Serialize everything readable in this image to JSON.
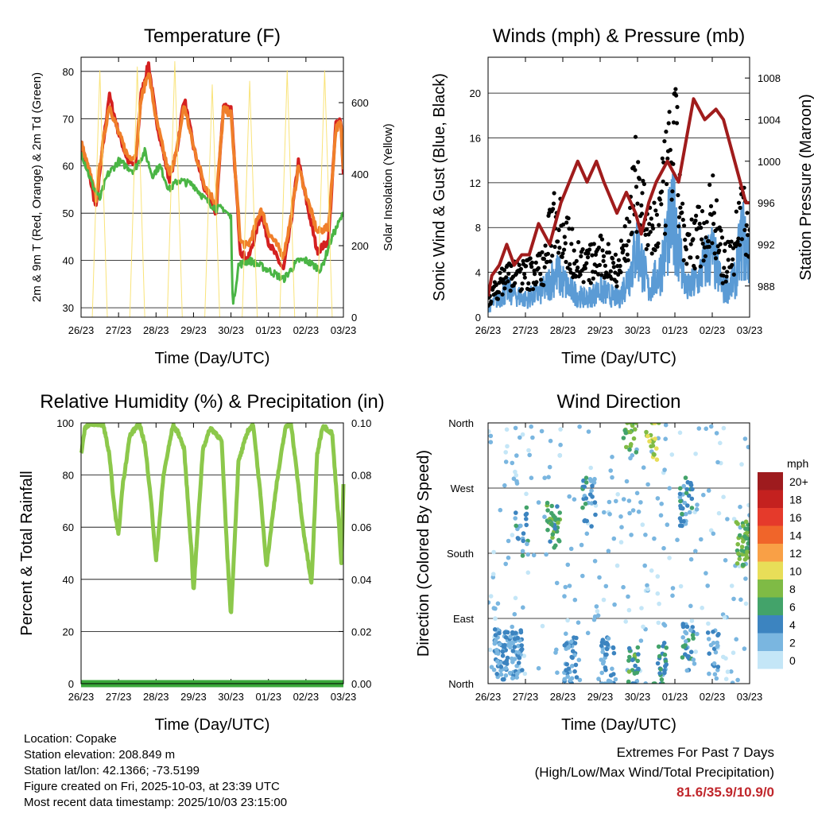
{
  "colors": {
    "temp2m": "#d42020",
    "temp9m": "#f07f2a",
    "dewpoint": "#4ab545",
    "solar": "#f8e06a",
    "sonic_wind": "#5b9bd5",
    "gust": "#000000",
    "pressure": "#a01c1c",
    "rh": "#8cc84b",
    "precip": "#3aa83a",
    "highlight": "#c0262b"
  },
  "chart_data": [
    {
      "id": "temperature",
      "type": "line",
      "title": "Temperature (F)",
      "xlabel": "Time (Day/UTC)",
      "ylabel": "2m & 9m T (Red, Orange) & 2m Td (Green)",
      "y2label": "Solar Insolation (Yellow)",
      "x_ticks": [
        "26/23",
        "27/23",
        "28/23",
        "29/23",
        "30/23",
        "01/23",
        "02/23",
        "03/23"
      ],
      "xlim": [
        0,
        7
      ],
      "ylim": [
        28,
        83
      ],
      "y_ticks": [
        30,
        40,
        50,
        60,
        70,
        80
      ],
      "y2lim": [
        0,
        727
      ],
      "y2_ticks": [
        0,
        200,
        400,
        600
      ],
      "series": [
        {
          "name": "2m T",
          "color_key": "temp2m",
          "x": [
            0,
            0.25,
            0.4,
            0.55,
            0.75,
            1.0,
            1.25,
            1.45,
            1.6,
            1.8,
            2.0,
            2.35,
            2.55,
            2.75,
            3.0,
            3.3,
            3.6,
            3.8,
            4.0,
            4.25,
            4.45,
            4.6,
            4.8,
            5.0,
            5.4,
            5.6,
            5.8,
            6.0,
            6.3,
            6.6,
            6.8,
            6.93,
            7.0
          ],
          "values": [
            65,
            57,
            51,
            62,
            75,
            67,
            61,
            60,
            75,
            81.6,
            70,
            57,
            63,
            74.5,
            64,
            55,
            50,
            73,
            72,
            42,
            40,
            44,
            50,
            44,
            38,
            48,
            61,
            53,
            42,
            44,
            69,
            70,
            58
          ]
        },
        {
          "name": "9m T",
          "color_key": "temp9m",
          "x": [
            0,
            0.25,
            0.4,
            0.55,
            0.75,
            1.0,
            1.25,
            1.45,
            1.6,
            1.8,
            2.0,
            2.35,
            2.55,
            2.75,
            3.0,
            3.3,
            3.6,
            3.8,
            4.0,
            4.25,
            4.45,
            4.6,
            4.8,
            5.0,
            5.4,
            5.6,
            5.8,
            6.0,
            6.3,
            6.6,
            6.8,
            6.93,
            7.0
          ],
          "values": [
            65,
            58,
            53,
            63,
            73,
            67,
            62,
            62,
            74,
            80,
            70,
            58,
            63,
            73,
            64,
            56,
            52,
            72,
            71,
            44,
            43,
            46,
            51,
            46,
            41,
            49,
            60,
            54,
            46,
            47,
            68,
            69,
            59
          ]
        },
        {
          "name": "2m Td",
          "color_key": "dewpoint",
          "x": [
            0,
            0.3,
            0.5,
            0.7,
            1.0,
            1.4,
            1.7,
            1.9,
            2.1,
            2.35,
            2.6,
            3.0,
            3.3,
            3.6,
            3.8,
            4.0,
            4.05,
            4.2,
            4.5,
            5.0,
            5.4,
            5.6,
            5.8,
            6.0,
            6.4,
            6.7,
            7.0
          ],
          "values": [
            63,
            56,
            53,
            58,
            61,
            59,
            63,
            58,
            60,
            55,
            57,
            56,
            53,
            51,
            51,
            49,
            30,
            39,
            40,
            38,
            36,
            38,
            40,
            40,
            38,
            45,
            50
          ]
        },
        {
          "name": "Solar Insolation",
          "color_key": "solar",
          "axis": "y2",
          "x": [
            0.3,
            0.5,
            0.7,
            1.3,
            1.5,
            1.7,
            2.3,
            2.5,
            2.7,
            3.3,
            3.5,
            3.7,
            4.3,
            4.5,
            4.7,
            5.3,
            5.5,
            5.7,
            6.3,
            6.5,
            6.7
          ],
          "values": [
            0,
            690,
            0,
            0,
            700,
            0,
            0,
            715,
            0,
            0,
            650,
            0,
            0,
            660,
            0,
            0,
            690,
            0,
            0,
            690,
            0
          ]
        }
      ]
    },
    {
      "id": "winds",
      "type": "line",
      "title": "Winds (mph) & Pressure (mb)",
      "xlabel": "Time (Day/UTC)",
      "ylabel": "Sonic Wind & Gust (Blue, Black)",
      "y2label": "Station Pressure (Maroon)",
      "x_ticks": [
        "26/23",
        "27/23",
        "28/23",
        "29/23",
        "30/23",
        "01/23",
        "02/23",
        "03/23"
      ],
      "xlim": [
        0,
        7
      ],
      "ylim": [
        0,
        23.2
      ],
      "y_ticks": [
        0,
        4,
        8,
        12,
        16,
        20
      ],
      "y2lim": [
        985,
        1010
      ],
      "y2_ticks": [
        988,
        992,
        996,
        1000,
        1004,
        1008
      ],
      "series": [
        {
          "name": "Sonic Wind",
          "color_key": "sonic_wind",
          "x": [
            0,
            0.5,
            1.0,
            1.5,
            1.8,
            2.2,
            2.6,
            3.0,
            3.5,
            3.8,
            4.0,
            4.3,
            4.6,
            4.8,
            5.0,
            5.3,
            5.6,
            5.8,
            6.0,
            6.3,
            6.6,
            6.8,
            7.0
          ],
          "values": [
            1,
            3,
            2,
            3,
            5,
            3,
            2,
            3,
            2,
            5,
            8,
            3,
            5,
            9,
            10.9,
            3,
            4,
            6,
            7,
            3,
            4,
            9,
            6
          ]
        },
        {
          "name": "Gust",
          "color_key": "gust",
          "x": [
            0,
            0.5,
            1.0,
            1.5,
            1.8,
            2.2,
            2.6,
            3.0,
            3.5,
            3.8,
            4.0,
            4.3,
            4.6,
            4.8,
            5.0,
            5.3,
            5.6,
            5.8,
            6.0,
            6.3,
            6.6,
            6.8,
            7.0
          ],
          "values": [
            2,
            5,
            5,
            6,
            13,
            8,
            6,
            7,
            6,
            11,
            17,
            9,
            12,
            17,
            21,
            7,
            10,
            10,
            13,
            6,
            8,
            14,
            9
          ]
        },
        {
          "name": "Station Pressure",
          "color_key": "pressure",
          "axis": "y2",
          "x": [
            0,
            0.1,
            0.3,
            0.5,
            0.7,
            0.9,
            1.1,
            1.35,
            1.65,
            1.95,
            2.4,
            2.65,
            2.9,
            3.1,
            3.45,
            3.7,
            3.95,
            4.1,
            4.3,
            4.5,
            4.8,
            5.1,
            5.5,
            5.8,
            6.1,
            6.3,
            6.6,
            6.9,
            7.0
          ],
          "values": [
            987,
            989,
            990,
            992,
            990,
            991,
            991,
            994,
            992,
            996,
            1000,
            998,
            1000,
            998,
            995,
            997,
            995,
            993,
            996,
            998,
            1000,
            998,
            1006,
            1004,
            1005,
            1004,
            1000,
            996,
            996
          ]
        }
      ]
    },
    {
      "id": "humidity",
      "type": "line",
      "title": "Relative Humidity (%) & Precipitation (in)",
      "xlabel": "Time (Day/UTC)",
      "ylabel": "Percent & Total Rainfall",
      "x_ticks": [
        "26/23",
        "27/23",
        "28/23",
        "29/23",
        "30/23",
        "01/23",
        "02/23",
        "03/23"
      ],
      "xlim": [
        0,
        7
      ],
      "ylim": [
        0,
        100
      ],
      "y_ticks": [
        0,
        20,
        40,
        60,
        80,
        100
      ],
      "y2lim": [
        0,
        0.1
      ],
      "y2_ticks": [
        "0.00",
        "0.02",
        "0.04",
        "0.06",
        "0.08",
        "0.10"
      ],
      "series": [
        {
          "name": "Relative Humidity",
          "color_key": "rh",
          "x": [
            0,
            0.1,
            0.3,
            0.6,
            0.75,
            0.9,
            1.0,
            1.1,
            1.3,
            1.55,
            1.7,
            1.85,
            2.0,
            2.2,
            2.45,
            2.6,
            2.75,
            2.95,
            3.0,
            3.25,
            3.45,
            3.6,
            3.75,
            3.9,
            4.0,
            4.2,
            4.45,
            4.6,
            4.8,
            4.95,
            5.2,
            5.45,
            5.6,
            5.75,
            5.9,
            6.15,
            6.3,
            6.45,
            6.7,
            6.9,
            6.95,
            7.0
          ],
          "values": [
            88,
            98,
            100,
            99,
            88,
            66,
            57,
            75,
            95,
            100,
            92,
            73,
            47,
            80,
            99,
            96,
            90,
            50,
            35,
            90,
            98,
            96,
            93,
            50,
            26,
            85,
            97,
            99,
            70,
            45,
            75,
            98,
            100,
            82,
            62,
            38,
            88,
            99,
            96,
            57,
            45,
            76
          ]
        },
        {
          "name": "Total Precipitation",
          "color_key": "precip",
          "axis": "y2",
          "x": [
            0,
            7
          ],
          "values": [
            0,
            0
          ]
        }
      ]
    },
    {
      "id": "direction",
      "type": "scatter",
      "title": "Wind Direction",
      "xlabel": "Time (Day/UTC)",
      "ylabel": "Direction (Colored By Speed)",
      "x_ticks": [
        "26/23",
        "27/23",
        "28/23",
        "29/23",
        "30/23",
        "01/23",
        "02/23",
        "03/23"
      ],
      "xlim": [
        0,
        7
      ],
      "ylim": [
        0,
        360
      ],
      "y_tick_labels": [
        "North",
        "East",
        "South",
        "West",
        "North"
      ],
      "legend_title": "mph",
      "legend_labels": [
        "20+",
        "18",
        "16",
        "14",
        "12",
        "10",
        "8",
        "6",
        "4",
        "2",
        "0"
      ],
      "legend_colors": [
        "#9e1b1e",
        "#c4211f",
        "#e53a2b",
        "#f0652a",
        "#f9a046",
        "#e8de58",
        "#7fbb45",
        "#43a36a",
        "#3c84c0",
        "#7ab6e0",
        "#c4e6f7"
      ],
      "clusters": [
        {
          "x": 0.35,
          "dir": 40,
          "n": 60,
          "speed": 3
        },
        {
          "x": 0.75,
          "dir": 40,
          "n": 55,
          "speed": 3
        },
        {
          "x": 0.9,
          "dir": 210,
          "n": 20,
          "speed": 4
        },
        {
          "x": 1.75,
          "dir": 220,
          "n": 35,
          "speed": 6
        },
        {
          "x": 2.2,
          "dir": 35,
          "n": 40,
          "speed": 3
        },
        {
          "x": 2.7,
          "dir": 250,
          "n": 25,
          "speed": 4
        },
        {
          "x": 3.2,
          "dir": 30,
          "n": 35,
          "speed": 3
        },
        {
          "x": 3.8,
          "dir": 350,
          "n": 20,
          "speed": 7
        },
        {
          "x": 3.9,
          "dir": 20,
          "n": 25,
          "speed": 6
        },
        {
          "x": 4.4,
          "dir": 340,
          "n": 22,
          "speed": 9
        },
        {
          "x": 4.6,
          "dir": 25,
          "n": 25,
          "speed": 5
        },
        {
          "x": 5.3,
          "dir": 250,
          "n": 35,
          "speed": 4
        },
        {
          "x": 5.35,
          "dir": 50,
          "n": 30,
          "speed": 4
        },
        {
          "x": 6.0,
          "dir": 40,
          "n": 20,
          "speed": 3
        },
        {
          "x": 6.8,
          "dir": 190,
          "n": 40,
          "speed": 7
        }
      ]
    }
  ],
  "footer": {
    "location": "Location: Copake",
    "elevation": "Station elevation: 208.849 m",
    "latlon": "Station lat/lon: 42.1366; -73.5199",
    "created": "Figure created on Fri, 2025-10-03, at 23:39 UTC",
    "recent": "Most recent data timestamp: 2025/10/03 23:15:00",
    "extremes_title": "Extremes For Past 7 Days",
    "extremes_subtitle": "(High/Low/Max Wind/Total Precipitation)",
    "extremes_values": "81.6/35.9/10.9/0"
  }
}
